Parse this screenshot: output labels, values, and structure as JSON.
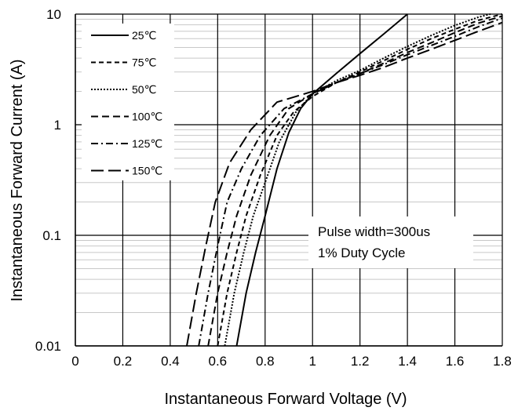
{
  "chart_data": {
    "type": "line",
    "title": "",
    "xlabel": "Instantaneous Forward Voltage (V)",
    "ylabel": "Instantaneous Forward Current (A)",
    "xlim": [
      0,
      1.8
    ],
    "ylim": [
      0.01,
      10
    ],
    "y_scale": "log",
    "grid": true,
    "legend_position": "top-left",
    "x_ticks": [
      "0",
      "0.2",
      "0.4",
      "0.6",
      "0.8",
      "1",
      "1.2",
      "1.4",
      "1.6",
      "1.8"
    ],
    "y_ticks": [
      "0.01",
      "0.1",
      "1",
      "10"
    ],
    "series": [
      {
        "name": "25℃",
        "dash": "solid",
        "points": [
          [
            0.68,
            0.01
          ],
          [
            0.72,
            0.03
          ],
          [
            0.76,
            0.07
          ],
          [
            0.8,
            0.15
          ],
          [
            0.85,
            0.4
          ],
          [
            0.9,
            0.85
          ],
          [
            0.95,
            1.4
          ],
          [
            1.0,
            1.9
          ],
          [
            1.1,
            2.9
          ],
          [
            1.2,
            4.4
          ],
          [
            1.3,
            6.6
          ],
          [
            1.4,
            10
          ]
        ]
      },
      {
        "name": "75℃",
        "dash": "dash",
        "points": [
          [
            0.6,
            0.01
          ],
          [
            0.64,
            0.03
          ],
          [
            0.68,
            0.07
          ],
          [
            0.72,
            0.15
          ],
          [
            0.78,
            0.35
          ],
          [
            0.85,
            0.8
          ],
          [
            0.92,
            1.3
          ],
          [
            1.0,
            1.8
          ],
          [
            1.1,
            2.4
          ],
          [
            1.2,
            3.0
          ],
          [
            1.3,
            3.8
          ],
          [
            1.4,
            4.8
          ],
          [
            1.5,
            6.0
          ],
          [
            1.6,
            7.3
          ],
          [
            1.7,
            8.8
          ],
          [
            1.8,
            10
          ]
        ]
      },
      {
        "name": "50℃",
        "dash": "dot",
        "points": [
          [
            0.63,
            0.01
          ],
          [
            0.67,
            0.03
          ],
          [
            0.71,
            0.07
          ],
          [
            0.75,
            0.15
          ],
          [
            0.8,
            0.3
          ],
          [
            0.86,
            0.7
          ],
          [
            0.93,
            1.3
          ],
          [
            1.0,
            1.9
          ],
          [
            1.1,
            2.5
          ],
          [
            1.2,
            3.1
          ],
          [
            1.3,
            4.0
          ],
          [
            1.4,
            5.1
          ],
          [
            1.5,
            6.4
          ],
          [
            1.6,
            7.9
          ],
          [
            1.7,
            9.4
          ],
          [
            1.75,
            10
          ]
        ]
      },
      {
        "name": "100℃",
        "dash": "longdash",
        "points": [
          [
            0.56,
            0.01
          ],
          [
            0.6,
            0.03
          ],
          [
            0.64,
            0.07
          ],
          [
            0.68,
            0.15
          ],
          [
            0.74,
            0.35
          ],
          [
            0.82,
            0.8
          ],
          [
            0.9,
            1.4
          ],
          [
            1.0,
            1.9
          ],
          [
            1.1,
            2.4
          ],
          [
            1.2,
            2.9
          ],
          [
            1.3,
            3.6
          ],
          [
            1.4,
            4.5
          ],
          [
            1.5,
            5.5
          ],
          [
            1.6,
            6.8
          ],
          [
            1.7,
            8.3
          ],
          [
            1.8,
            9.6
          ]
        ]
      },
      {
        "name": "125℃",
        "dash": "dashdot",
        "points": [
          [
            0.52,
            0.01
          ],
          [
            0.56,
            0.03
          ],
          [
            0.6,
            0.08
          ],
          [
            0.64,
            0.2
          ],
          [
            0.7,
            0.4
          ],
          [
            0.78,
            0.8
          ],
          [
            0.88,
            1.4
          ],
          [
            1.0,
            1.9
          ],
          [
            1.1,
            2.4
          ],
          [
            1.2,
            2.9
          ],
          [
            1.3,
            3.5
          ],
          [
            1.4,
            4.3
          ],
          [
            1.5,
            5.2
          ],
          [
            1.6,
            6.3
          ],
          [
            1.7,
            7.7
          ],
          [
            1.8,
            9.2
          ]
        ]
      },
      {
        "name": "150℃",
        "dash": "longlongdash",
        "points": [
          [
            0.47,
            0.01
          ],
          [
            0.51,
            0.03
          ],
          [
            0.55,
            0.08
          ],
          [
            0.59,
            0.2
          ],
          [
            0.65,
            0.45
          ],
          [
            0.74,
            0.9
          ],
          [
            0.85,
            1.6
          ],
          [
            1.0,
            2.0
          ],
          [
            1.1,
            2.4
          ],
          [
            1.2,
            2.8
          ],
          [
            1.3,
            3.3
          ],
          [
            1.4,
            4.0
          ],
          [
            1.5,
            4.8
          ],
          [
            1.6,
            5.8
          ],
          [
            1.7,
            7.0
          ],
          [
            1.8,
            8.4
          ]
        ]
      }
    ],
    "annotations": [
      "Pulse width=300us",
      "1% Duty Cycle"
    ]
  }
}
